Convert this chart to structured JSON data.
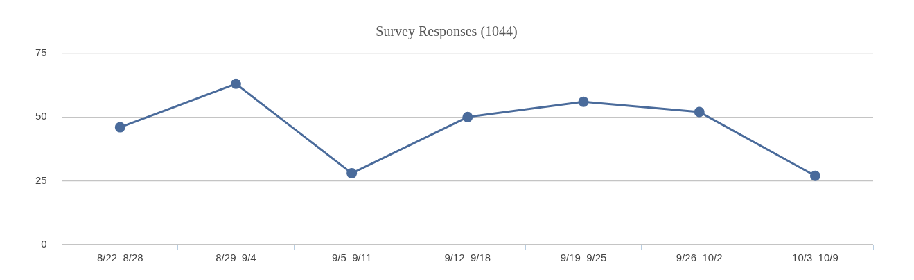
{
  "chart_data": {
    "type": "line",
    "title": "Survey Responses (1044)",
    "categories": [
      "8/22–8/28",
      "8/29–9/4",
      "9/5–9/11",
      "9/12–9/18",
      "9/19–9/25",
      "9/26–10/2",
      "10/3–10/9"
    ],
    "series": [
      {
        "color": "#4a6b9b",
        "values": [
          46,
          63,
          28,
          50,
          56,
          52,
          27
        ]
      }
    ],
    "ylim": [
      0,
      75
    ],
    "yticks": [
      0,
      25,
      50,
      75
    ],
    "grid": "y",
    "legend": false,
    "marker": "circle",
    "line_style": "solid"
  }
}
